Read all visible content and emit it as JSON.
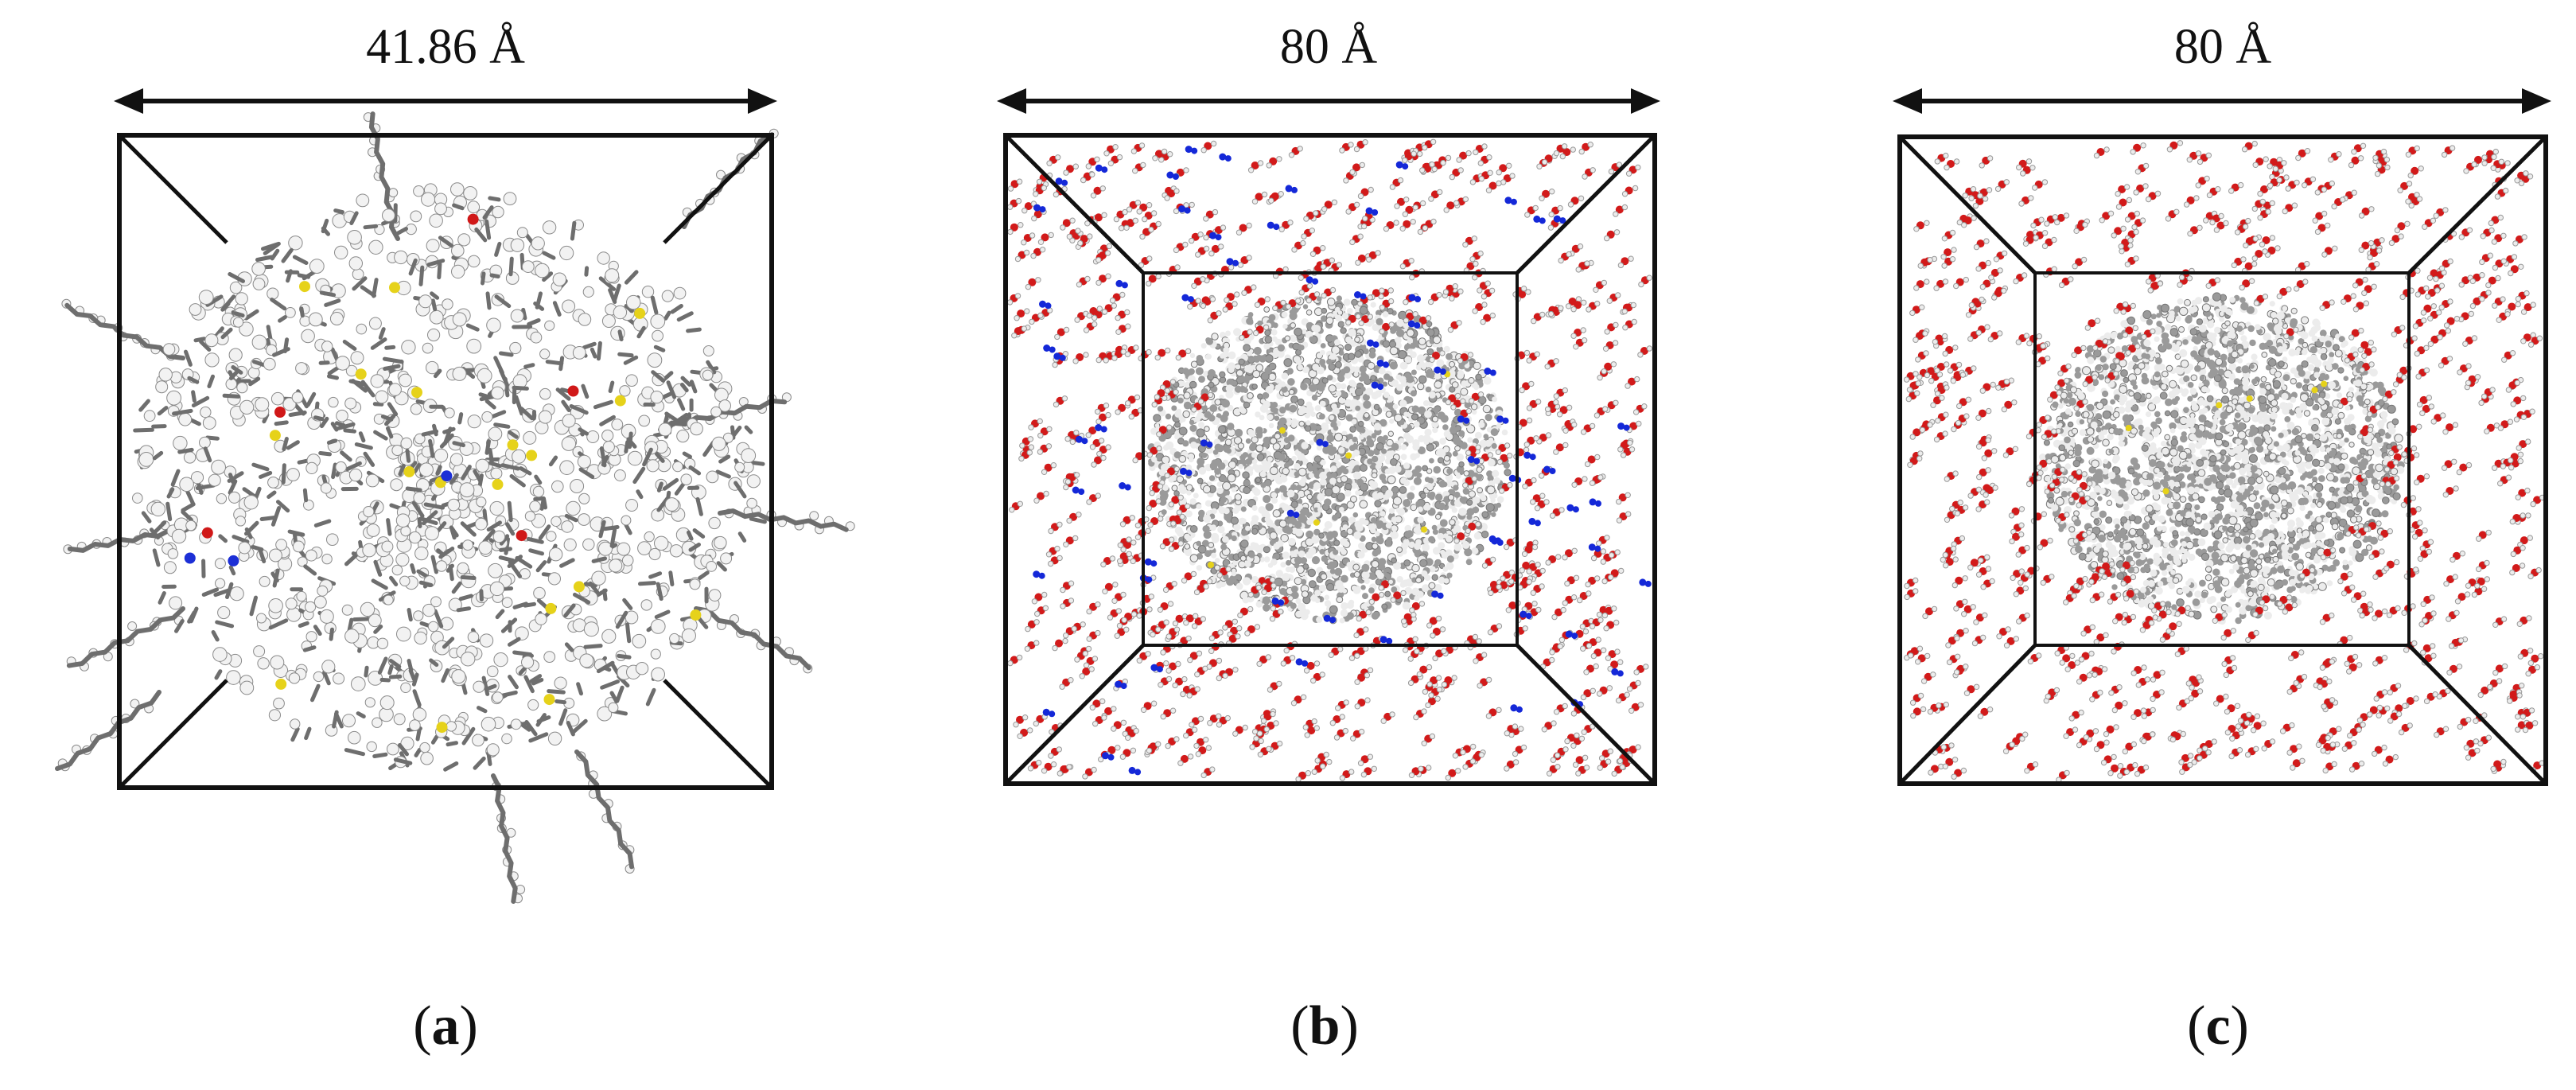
{
  "figure": {
    "panels": [
      {
        "id": "a",
        "dimension_label": "41.86 Å",
        "sub_label_letter": "a",
        "atom_colors": {
          "carbon": "#6e6e6e",
          "hydrogen": "#f2f2f2",
          "sulfur": "#e6d21a",
          "oxygen": "#d01818",
          "nitrogen": "#1c2fd6"
        }
      },
      {
        "id": "b",
        "dimension_label": "80 Å",
        "sub_label_letter": "b",
        "atom_colors": {
          "carbon": "#9a9a9a",
          "hydrogen": "#ececec",
          "oxygen": "#d21a1a",
          "nitrogen": "#1428d8",
          "sulfur": "#e6d21a"
        }
      },
      {
        "id": "c",
        "dimension_label": "80 Å",
        "sub_label_letter": "c",
        "atom_colors": {
          "carbon": "#9a9a9a",
          "hydrogen": "#ececec",
          "oxygen": "#d21a1a",
          "sulfur": "#e6d21a"
        }
      }
    ],
    "line_color": "#111111"
  }
}
